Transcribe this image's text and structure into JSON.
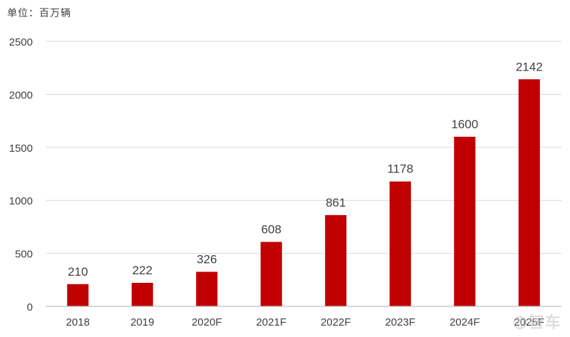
{
  "chart_data": {
    "type": "bar",
    "unit_label": "单位：百万辆",
    "categories": [
      "2018",
      "2019",
      "2020F",
      "2021F",
      "2022F",
      "2023F",
      "2024F",
      "2025F"
    ],
    "values": [
      210,
      222,
      326,
      608,
      861,
      1178,
      1600,
      2142
    ],
    "data_labels": [
      "210",
      "222",
      "326",
      "608",
      "861",
      "1178",
      "1600",
      "2142"
    ],
    "y_ticks": [
      0,
      500,
      1000,
      1500,
      2000,
      2500
    ],
    "ylim": [
      0,
      2500
    ],
    "grid": true,
    "legend": "none",
    "bar_color": "#c00000",
    "grid_color": "#d9d9d9",
    "axis_color": "#bfbfbf",
    "text_color": "#404040"
  },
  "watermark": {
    "icon": "watermark-logo-icon",
    "text": "智车"
  }
}
